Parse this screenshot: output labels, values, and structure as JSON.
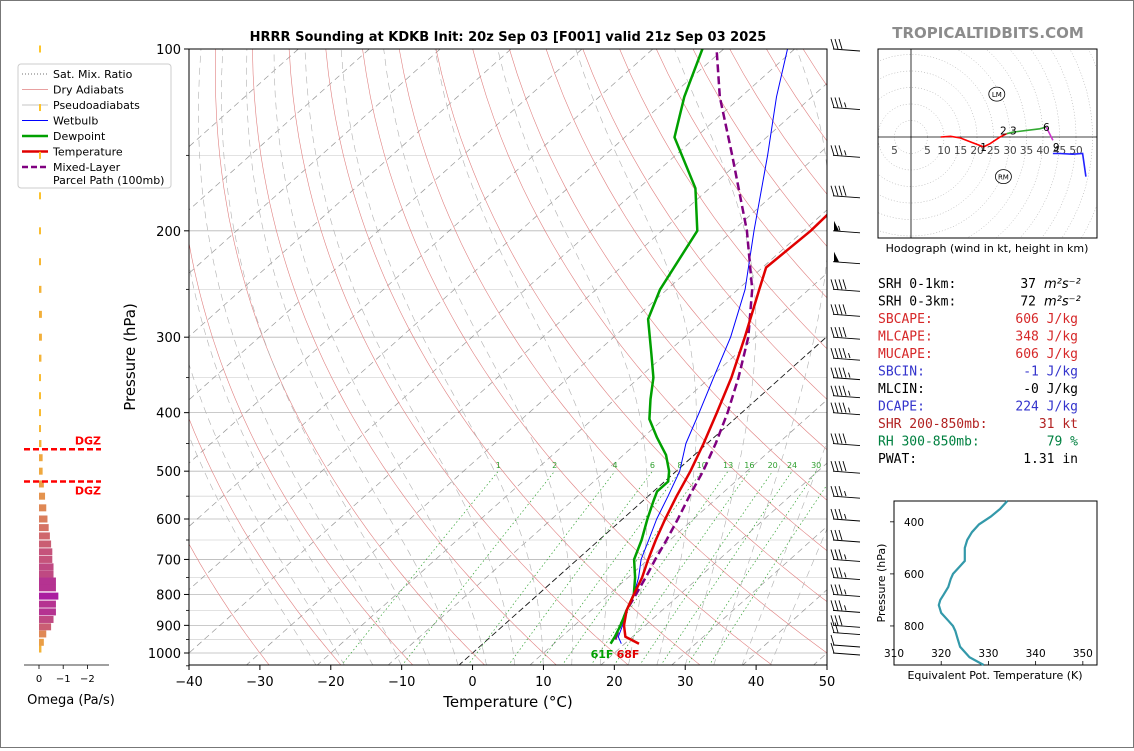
{
  "brand": "TROPICALTIDBITS.COM",
  "colors": {
    "temperature": "#e00000",
    "dewpoint": "#00a000",
    "parcel": "#800080",
    "wetbulb": "#0000ff",
    "dry_adiabat": "#e08080",
    "moist_adiabat": "#b0b0b0",
    "mixing_ratio": "#30a030",
    "cape_red": "#d62728",
    "cin_blue": "#3333cc",
    "rh_green": "#008040",
    "thetae_line": "#3399aa"
  },
  "chart_data": [
    {
      "type": "line",
      "title": "HRRR Sounding at KDKB Init: 20z Sep 03 [F001] valid 21z Sep 03 2025",
      "xlabel": "Temperature (°C)",
      "ylabel": "Pressure (hPa)",
      "xlim": [
        -40,
        50
      ],
      "ylim": [
        1050,
        100
      ],
      "y_scale": "log",
      "x_ticks": [
        "−40",
        "−30",
        "−20",
        "−10",
        "0",
        "10",
        "20",
        "30",
        "40",
        "50"
      ],
      "x_tick_values": [
        -40,
        -30,
        -20,
        -10,
        0,
        10,
        20,
        30,
        40,
        50
      ],
      "y_ticks": [
        "100",
        "200",
        "300",
        "400",
        "500",
        "600",
        "700",
        "800",
        "900",
        "1000"
      ],
      "y_tick_values": [
        100,
        200,
        300,
        400,
        500,
        600,
        700,
        800,
        900,
        1000
      ],
      "mixing_ratio_labels": [
        "1",
        "2",
        "4",
        "6",
        "8",
        "10",
        "13",
        "16",
        "20",
        "24",
        "30",
        "36"
      ],
      "mixing_ratio_label_values": [
        1,
        2,
        4,
        6,
        8,
        10,
        13,
        16,
        20,
        24,
        30,
        36
      ],
      "legend_position": "upper-left",
      "surface_dewpoint_label": "61F",
      "surface_temperature_label": "68F",
      "series": [
        {
          "name": "Temperature",
          "p": [
            965,
            940,
            900,
            850,
            800,
            750,
            700,
            650,
            600,
            550,
            500,
            450,
            400,
            350,
            300,
            250,
            230,
            200,
            170,
            140,
            120,
            100
          ],
          "t": [
            22,
            19,
            17,
            15,
            13.5,
            12,
            10,
            8,
            6,
            4,
            2,
            -0.5,
            -3.5,
            -7,
            -11.5,
            -17,
            -19.5,
            -19,
            -19.5,
            -23,
            -27,
            -32
          ]
        },
        {
          "name": "Dewpoint",
          "p": [
            965,
            940,
            900,
            850,
            800,
            750,
            700,
            650,
            600,
            560,
            540,
            520,
            500,
            470,
            440,
            410,
            380,
            350,
            320,
            280,
            250,
            200,
            170,
            140,
            120,
            100
          ],
          "t": [
            18,
            17.5,
            16.5,
            15,
            13.5,
            11,
            8,
            6,
            3.5,
            1.5,
            0.5,
            0.5,
            -1,
            -4,
            -8,
            -12,
            -15,
            -18,
            -22,
            -28,
            -31,
            -35,
            -42,
            -53,
            -58,
            -63
          ]
        },
        {
          "name": "Wetbulb",
          "p": [
            965,
            940,
            900,
            850,
            800,
            750,
            700,
            650,
            600,
            550,
            500,
            450,
            400,
            350,
            300,
            250,
            200,
            150,
            120,
            100
          ],
          "t": [
            19.5,
            18,
            16.8,
            15,
            13.5,
            11.5,
            9,
            7,
            4.8,
            2.8,
            0.5,
            -3,
            -6,
            -9.5,
            -13.5,
            -19,
            -27,
            -37,
            -45,
            -51
          ]
        },
        {
          "name": "Mixed-Layer Parcel Path (100mb)",
          "p": [
            950,
            900,
            850,
            800,
            750,
            700,
            650,
            600,
            550,
            500,
            450,
            400,
            350,
            300,
            250,
            200,
            150,
            120,
            100
          ],
          "t": [
            18,
            16.5,
            15,
            13.8,
            12.5,
            11,
            9.5,
            7.8,
            5.8,
            3.8,
            1.2,
            -2,
            -6,
            -11,
            -18,
            -28,
            -42,
            -53,
            -61
          ]
        }
      ],
      "wind_barbs": [
        {
          "p": 1000,
          "kt": 10
        },
        {
          "p": 970,
          "kt": 10
        },
        {
          "p": 925,
          "kt": 20
        },
        {
          "p": 900,
          "kt": 30
        },
        {
          "p": 850,
          "kt": 35
        },
        {
          "p": 800,
          "kt": 35
        },
        {
          "p": 750,
          "kt": 35
        },
        {
          "p": 700,
          "kt": 35
        },
        {
          "p": 650,
          "kt": 30
        },
        {
          "p": 600,
          "kt": 35
        },
        {
          "p": 550,
          "kt": 35
        },
        {
          "p": 500,
          "kt": 40
        },
        {
          "p": 450,
          "kt": 40
        },
        {
          "p": 400,
          "kt": 45
        },
        {
          "p": 375,
          "kt": 45
        },
        {
          "p": 350,
          "kt": 45
        },
        {
          "p": 325,
          "kt": 45
        },
        {
          "p": 300,
          "kt": 40
        },
        {
          "p": 275,
          "kt": 40
        },
        {
          "p": 250,
          "kt": 40
        },
        {
          "p": 225,
          "kt": 50
        },
        {
          "p": 200,
          "kt": 55
        },
        {
          "p": 175,
          "kt": 40
        },
        {
          "p": 150,
          "kt": 35
        },
        {
          "p": 125,
          "kt": 35
        },
        {
          "p": 100,
          "kt": 30
        }
      ]
    },
    {
      "type": "bar",
      "title": "",
      "xlabel": "Omega (Pa/s)",
      "x_ticks": [
        "0",
        "−1",
        "−2"
      ],
      "x_tick_values": [
        0,
        -1,
        -2
      ],
      "xlim": [
        0,
        -2.6
      ],
      "dgz_label": "DGZ",
      "dgz_pressures": [
        460,
        520
      ],
      "p": [
        985,
        960,
        930,
        905,
        880,
        855,
        830,
        805,
        780,
        760,
        740,
        720,
        700,
        680,
        660,
        640,
        620,
        600,
        575,
        550,
        525,
        500,
        475,
        450,
        425,
        400,
        375,
        350,
        325,
        300,
        275,
        250,
        225,
        200,
        175,
        150,
        125,
        100
      ],
      "values": [
        -0.1,
        -0.2,
        -0.3,
        -0.5,
        -0.6,
        -0.7,
        -0.7,
        -0.8,
        -0.7,
        -0.7,
        -0.6,
        -0.6,
        -0.55,
        -0.55,
        -0.5,
        -0.45,
        -0.4,
        -0.35,
        -0.3,
        -0.25,
        -0.2,
        -0.15,
        -0.15,
        -0.1,
        -0.08,
        -0.06,
        -0.05,
        -0.06,
        -0.1,
        -0.12,
        -0.12,
        -0.1,
        -0.08,
        -0.05,
        -0.03,
        -0.02,
        -0.02,
        -0.01
      ]
    },
    {
      "type": "line",
      "title": "Hodograph (wind in kt, height in km)",
      "ring_labels": [
        "5",
        "5",
        "10",
        "15",
        "20",
        "25",
        "30",
        "35",
        "40",
        "45",
        "50"
      ],
      "ring_label_values": [
        -5,
        5,
        10,
        15,
        20,
        25,
        30,
        35,
        40,
        45,
        50
      ],
      "height_labels": [
        "1",
        "2",
        "3",
        "6",
        "9"
      ],
      "height_label_u": [
        22,
        28,
        31,
        41,
        44
      ],
      "height_label_v": [
        -3,
        2,
        2,
        3,
        -3
      ],
      "storm_motion": [
        {
          "label": "LM",
          "u": 26,
          "v": 13
        },
        {
          "label": "RM",
          "u": 28,
          "v": -12
        }
      ],
      "series": [
        {
          "name": "0-1km",
          "color": "#ff0000",
          "u": [
            9,
            12,
            15,
            18,
            22
          ],
          "v": [
            0,
            0.2,
            -0.3,
            -1.5,
            -3
          ]
        },
        {
          "name": "1-3km",
          "color": "#ff0000",
          "u": [
            22,
            24,
            27,
            29
          ],
          "v": [
            -3,
            -2,
            0,
            1
          ]
        },
        {
          "name": "3-6km",
          "color": "#33aa33",
          "u": [
            29,
            31,
            35,
            39,
            41
          ],
          "v": [
            1,
            1.5,
            2,
            2.5,
            3
          ]
        },
        {
          "name": "6-9km",
          "color": "#cc33cc",
          "u": [
            41,
            42,
            43
          ],
          "v": [
            3,
            1,
            -1
          ]
        },
        {
          "name": "9-12km",
          "color": "#2222ff",
          "u": [
            43,
            45,
            49,
            52,
            53
          ],
          "v": [
            -5,
            -5,
            -5.2,
            -5,
            -12
          ]
        }
      ]
    },
    {
      "type": "line",
      "title": "",
      "xlabel": "Equivalent Pot. Temperature (K)",
      "ylabel": "Pressure (hPa)",
      "xlim": [
        310,
        353
      ],
      "ylim": [
        950,
        320
      ],
      "x_ticks": [
        "310",
        "320",
        "330",
        "340",
        "350"
      ],
      "x_tick_values": [
        310,
        320,
        330,
        340,
        350
      ],
      "y_ticks": [
        "400",
        "600",
        "800"
      ],
      "y_tick_values": [
        400,
        600,
        800
      ],
      "p": [
        950,
        920,
        880,
        850,
        820,
        800,
        780,
        750,
        720,
        700,
        680,
        650,
        620,
        600,
        570,
        550,
        530,
        500,
        470,
        440,
        410,
        380,
        350,
        320
      ],
      "thetae": [
        329,
        326,
        324,
        323.5,
        323,
        322.5,
        321.5,
        320,
        319.5,
        319.8,
        320.5,
        321.5,
        322,
        322.5,
        324,
        325,
        325,
        325,
        325.5,
        326.5,
        328,
        330.5,
        332.5,
        334
      ]
    }
  ],
  "legend": [
    {
      "label": "Sat. Mix. Ratio",
      "style": "dotted",
      "color": "#707070",
      "width": 1
    },
    {
      "label": "Dry Adiabats",
      "style": "solid",
      "color": "#e08080",
      "width": 0.8
    },
    {
      "label": "Pseudoadiabats",
      "style": "solid",
      "color": "#b0b0b0",
      "width": 0.8
    },
    {
      "label": "Wetbulb",
      "style": "solid",
      "color": "#0000ff",
      "width": 1
    },
    {
      "label": "Dewpoint",
      "style": "solid",
      "color": "#00a000",
      "width": 2.5
    },
    {
      "label": "Temperature",
      "style": "solid",
      "color": "#e00000",
      "width": 2.5
    },
    {
      "label": "Mixed-Layer",
      "label2": "Parcel Path (100mb)",
      "style": "dashed",
      "color": "#800080",
      "width": 2.5
    }
  ],
  "parameters": [
    {
      "label": "SRH 0-1km:",
      "value": "37",
      "unit": "m²s⁻²",
      "color": "#000000"
    },
    {
      "label": "SRH 0-3km:",
      "value": "72",
      "unit": "m²s⁻²",
      "color": "#000000"
    },
    {
      "label": "SBCAPE:",
      "value": "606 J/kg",
      "unit": "",
      "color": "#d62728"
    },
    {
      "label": "MLCAPE:",
      "value": "348 J/kg",
      "unit": "",
      "color": "#d62728"
    },
    {
      "label": "MUCAPE:",
      "value": "606 J/kg",
      "unit": "",
      "color": "#d62728"
    },
    {
      "label": "SBCIN:",
      "value": "-1 J/kg",
      "unit": "",
      "color": "#3333cc"
    },
    {
      "label": "MLCIN:",
      "value": "-0 J/kg",
      "unit": "",
      "color": "#000000"
    },
    {
      "label": "DCAPE:",
      "value": "224 J/kg",
      "unit": "",
      "color": "#3333cc"
    },
    {
      "label": "SHR 200-850mb:",
      "value": "31 kt",
      "unit": "",
      "color": "#b22222"
    },
    {
      "label": "RH 300-850mb:",
      "value": "79 %",
      "unit": "",
      "color": "#008040"
    },
    {
      "label": "PWAT:",
      "value": "1.31 in",
      "unit": "",
      "color": "#000000"
    }
  ]
}
